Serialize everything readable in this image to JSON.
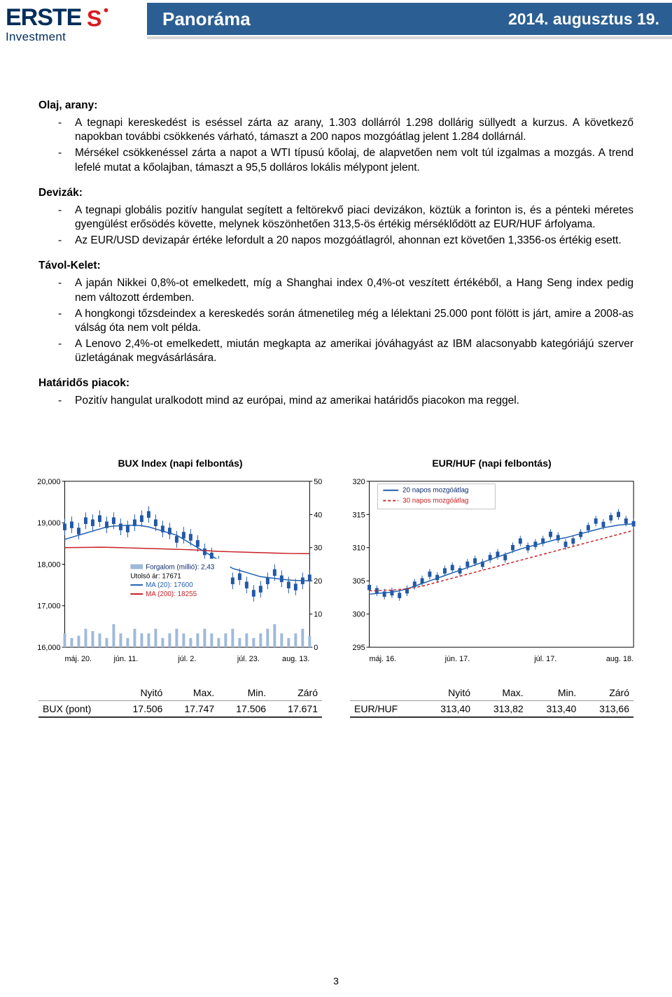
{
  "header": {
    "logo_main": "ERSTE",
    "logo_sub": "Investment",
    "title": "Panoráma",
    "date": "2014. augusztus 19.",
    "band_color": "#2b5f93",
    "text_color": "#ffffff",
    "logo_color": "#002d5a",
    "squirrel_red": "#d71920"
  },
  "sections": {
    "olaj": {
      "heading": "Olaj, arany:",
      "items": [
        "A tegnapi kereskedést is eséssel zárta az arany, 1.303 dollárról 1.298 dollárig süllyedt a kurzus. A következő napokban további csökkenés várható, támaszt a 200 napos mozgóátlag jelent 1.284 dollárnál.",
        "Mérsékel csökkenéssel zárta a napot a WTI típusú kőolaj, de alapvetően nem volt túl izgalmas a mozgás. A trend lefelé mutat a kőolajban, támaszt a 95,5 dolláros lokális mélypont jelent."
      ]
    },
    "devizak": {
      "heading": "Devizák:",
      "items": [
        "A tegnapi globális pozitív hangulat segített a feltörekvő piaci devizákon, köztük a forinton is, és a pénteki méretes gyengülést erősödés követte, melynek köszönhetően 313,5-ös értékig mérséklődött az EUR/HUF árfolyama.",
        "Az EUR/USD devizapár értéke lefordult a 20 napos mozgóátlagról, ahonnan ezt követően 1,3356-os értékig esett."
      ]
    },
    "tavol": {
      "heading": "Távol-Kelet:",
      "items": [
        "A japán Nikkei 0,8%-ot emelkedett, míg a Shanghai index 0,4%-ot veszített értékéből, a Hang Seng index pedig nem változott érdemben.",
        "A hongkongi tőzsdeindex a kereskedés során átmenetileg még a lélektani 25.000 pont fölött is járt, amire a 2008-as válság óta nem volt példa.",
        "A Lenovo 2,4%-ot emelkedett, miután megkapta az amerikai jóváhagyást az IBM alacsonyabb kategóriájú szerver üzletágának megvásárlására."
      ]
    },
    "hataridos": {
      "heading": "Határidős piacok:",
      "items": [
        "Pozitív hangulat uralkodott mind az európai, mind az amerikai határidős piacokon ma reggel."
      ]
    }
  },
  "chart_bux": {
    "title": "BUX Index (napi felbontás)",
    "y_ticks": [
      16000,
      17000,
      18000,
      19000,
      20000
    ],
    "y_labels": [
      "16,000",
      "17,000",
      "18,000",
      "19,000",
      "20,000"
    ],
    "y2_ticks": [
      0,
      10,
      20,
      30,
      40,
      50
    ],
    "x_labels": [
      "máj. 20.",
      "jún. 11.",
      "júl. 2.",
      "júl. 23.",
      "aug. 13."
    ],
    "legend": {
      "forg_label": "Forgalom (millió):",
      "forg_value": "2,43",
      "utolso_label": "Utolsó ár:",
      "utolso_value": "17671",
      "ma20_label": "MA (20):",
      "ma20_value": "17600",
      "ma200_label": "MA (200):",
      "ma200_value": "18255"
    },
    "colors": {
      "candle": "#2258a6",
      "ma20": "#1f5fb0",
      "ma200": "#c82127",
      "volume": "#9fb9db",
      "axis": "#000000",
      "bg": "#ffffff"
    },
    "candles_y": [
      18900,
      18950,
      18800,
      19050,
      19000,
      19100,
      18950,
      19050,
      18900,
      18850,
      19000,
      19100,
      19200,
      19000,
      18850,
      18800,
      18600,
      18700,
      18650,
      18500,
      18300,
      18200,
      18000,
      17850,
      17600,
      17700,
      17500,
      17300,
      17400,
      17600,
      17800,
      17650,
      17500,
      17450,
      17600,
      17671
    ],
    "ma20_y": [
      18600,
      18650,
      18700,
      18750,
      18800,
      18850,
      18900,
      18920,
      18930,
      18940,
      18940,
      18930,
      18900,
      18850,
      18800,
      18750,
      18700,
      18600,
      18500,
      18400,
      18300,
      18200,
      18100,
      18000,
      17900,
      17850,
      17800,
      17750,
      17700,
      17680,
      17660,
      17640,
      17620,
      17610,
      17605,
      17600
    ],
    "ma200_y": [
      18400,
      18402,
      18404,
      18406,
      18408,
      18410,
      18408,
      18405,
      18400,
      18395,
      18390,
      18385,
      18380,
      18375,
      18370,
      18365,
      18360,
      18355,
      18350,
      18340,
      18330,
      18320,
      18310,
      18305,
      18300,
      18295,
      18290,
      18285,
      18280,
      18275,
      18270,
      18265,
      18260,
      18258,
      18256,
      18255
    ],
    "volumes": [
      3,
      2,
      2.5,
      4,
      3.5,
      3,
      2,
      5,
      3,
      2,
      4,
      3,
      3,
      4,
      2,
      3,
      4,
      3,
      2,
      3,
      4,
      3,
      2,
      3,
      4,
      2,
      3,
      2,
      3,
      4,
      5,
      3,
      2,
      3,
      4,
      2.43
    ]
  },
  "chart_eurhuf": {
    "title": "EUR/HUF (napi felbontás)",
    "y_ticks": [
      295,
      300,
      305,
      310,
      315,
      320
    ],
    "x_labels": [
      "máj. 16.",
      "jún. 17.",
      "júl. 17.",
      "aug. 18."
    ],
    "legend": {
      "ma20": "20 napos mozgóátlag",
      "ma30": "30 napos mozgóátlag"
    },
    "colors": {
      "candle": "#2258a6",
      "ma20": "#1f5fb0",
      "ma30": "#c82127",
      "axis": "#000000",
      "bg": "#ffffff"
    },
    "candles_y": [
      304,
      303.5,
      303,
      303.2,
      302.8,
      303.5,
      304.5,
      305,
      306,
      305.5,
      306.5,
      307,
      306.5,
      307.5,
      308,
      307.5,
      308.5,
      309,
      308.5,
      310,
      311,
      310,
      310.5,
      311,
      312,
      311.5,
      310.5,
      311,
      312,
      313,
      314,
      313.5,
      314.5,
      315,
      314,
      313.6
    ],
    "ma20_y": [
      303,
      303.1,
      303.2,
      303.3,
      303.5,
      303.8,
      304.2,
      304.6,
      305,
      305.4,
      305.8,
      306.2,
      306.6,
      307,
      307.4,
      307.8,
      308.2,
      308.6,
      309,
      309.4,
      309.8,
      310.1,
      310.4,
      310.7,
      311,
      311.3,
      311.5,
      311.8,
      312.1,
      312.4,
      312.7,
      313,
      313.2,
      313.4,
      313.5,
      313.6
    ],
    "ma30_y": [
      303.5,
      303.5,
      303.6,
      303.6,
      303.7,
      303.8,
      304,
      304.2,
      304.5,
      304.8,
      305.1,
      305.4,
      305.7,
      306,
      306.3,
      306.6,
      306.9,
      307.2,
      307.5,
      307.8,
      308.1,
      308.4,
      308.7,
      309,
      309.3,
      309.6,
      309.9,
      310.2,
      310.5,
      310.8,
      311.1,
      311.4,
      311.7,
      312,
      312.3,
      312.6
    ]
  },
  "table_bux": {
    "headers": [
      "",
      "Nyitó",
      "Max.",
      "Min.",
      "Záró"
    ],
    "row_label": "BUX (pont)",
    "values": [
      "17.506",
      "17.747",
      "17.506",
      "17.671"
    ]
  },
  "table_eurhuf": {
    "headers": [
      "",
      "Nyitó",
      "Max.",
      "Min.",
      "Záró"
    ],
    "row_label": "EUR/HUF",
    "values": [
      "313,40",
      "313,82",
      "313,40",
      "313,66"
    ]
  },
  "page_number": "3"
}
